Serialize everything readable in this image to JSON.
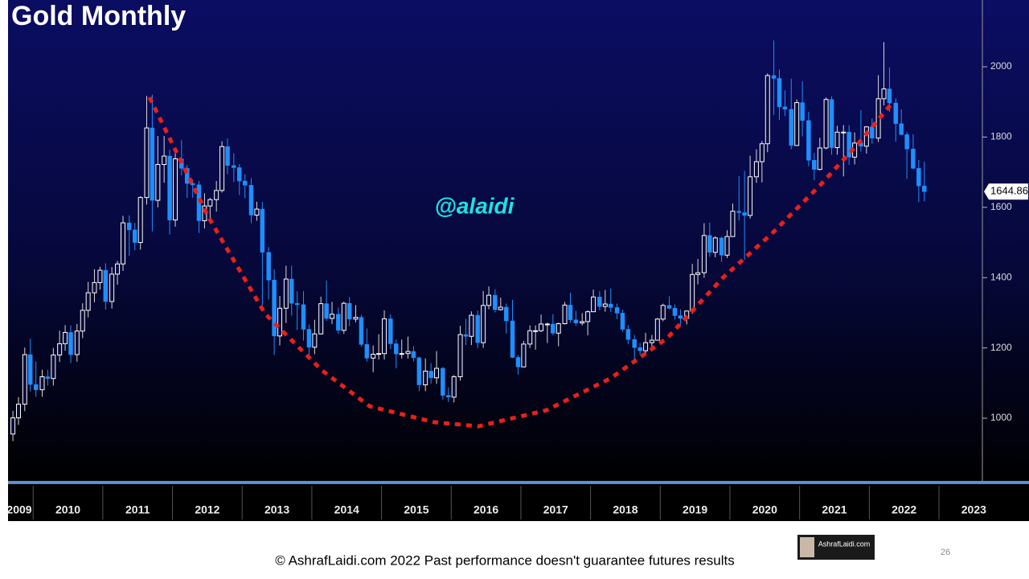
{
  "chart_data": {
    "type": "candlestick",
    "title": "Gold Monthly",
    "watermark": "@alaidi",
    "up_color": "#ffffff",
    "down_color": "#1e8fff",
    "x": [
      2009.71,
      2009.79,
      2009.88,
      2009.96,
      2010.04,
      2010.13,
      2010.21,
      2010.29,
      2010.38,
      2010.46,
      2010.54,
      2010.63,
      2010.71,
      2010.79,
      2010.88,
      2010.96,
      2011.04,
      2011.13,
      2011.21,
      2011.29,
      2011.38,
      2011.46,
      2011.54,
      2011.63,
      2011.71,
      2011.79,
      2011.88,
      2011.96,
      2012.04,
      2012.13,
      2012.21,
      2012.29,
      2012.38,
      2012.46,
      2012.54,
      2012.63,
      2012.71,
      2012.79,
      2012.88,
      2012.96,
      2013.04,
      2013.13,
      2013.21,
      2013.29,
      2013.38,
      2013.46,
      2013.54,
      2013.63,
      2013.71,
      2013.79,
      2013.88,
      2013.96,
      2014.04,
      2014.13,
      2014.21,
      2014.29,
      2014.38,
      2014.46,
      2014.54,
      2014.63,
      2014.71,
      2014.79,
      2014.88,
      2014.96,
      2015.04,
      2015.13,
      2015.21,
      2015.29,
      2015.38,
      2015.46,
      2015.54,
      2015.63,
      2015.71,
      2015.79,
      2015.88,
      2015.96,
      2016.04,
      2016.13,
      2016.21,
      2016.29,
      2016.38,
      2016.46,
      2016.54,
      2016.63,
      2016.71,
      2016.79,
      2016.88,
      2016.96,
      2017.04,
      2017.13,
      2017.21,
      2017.29,
      2017.38,
      2017.46,
      2017.54,
      2017.63,
      2017.71,
      2017.79,
      2017.88,
      2017.96,
      2018.04,
      2018.13,
      2018.21,
      2018.29,
      2018.38,
      2018.46,
      2018.54,
      2018.63,
      2018.71,
      2018.79,
      2018.88,
      2018.96,
      2019.04,
      2019.13,
      2019.21,
      2019.29,
      2019.38,
      2019.46,
      2019.54,
      2019.63,
      2019.71,
      2019.79,
      2019.88,
      2019.96,
      2020.04,
      2020.13,
      2020.21,
      2020.29,
      2020.38,
      2020.46,
      2020.54,
      2020.63,
      2020.71,
      2020.79,
      2020.88,
      2020.96,
      2021.04,
      2021.13,
      2021.21,
      2021.29,
      2021.38,
      2021.46,
      2021.54,
      2021.63,
      2021.71,
      2021.79,
      2021.88,
      2021.96,
      2022.04,
      2022.13,
      2022.21,
      2022.29,
      2022.38,
      2022.46,
      2022.54,
      2022.63,
      2022.71,
      2022.79
    ],
    "open": [
      955,
      1001,
      1040,
      1181,
      1096,
      1081,
      1118,
      1113,
      1180,
      1212,
      1244,
      1181,
      1248,
      1307,
      1357,
      1386,
      1421,
      1332,
      1410,
      1439,
      1556,
      1536,
      1500,
      1628,
      1826,
      1620,
      1722,
      1746,
      1564,
      1738,
      1711,
      1668,
      1664,
      1562,
      1604,
      1622,
      1648,
      1773,
      1719,
      1713,
      1675,
      1663,
      1578,
      1595,
      1472,
      1393,
      1234,
      1313,
      1396,
      1327,
      1323,
      1253,
      1202,
      1240,
      1326,
      1284,
      1296,
      1250,
      1327,
      1282,
      1287,
      1210,
      1171,
      1182,
      1184,
      1283,
      1212,
      1183,
      1184,
      1190,
      1172,
      1095,
      1134,
      1115,
      1142,
      1065,
      1060,
      1118,
      1238,
      1233,
      1293,
      1215,
      1321,
      1350,
      1309,
      1316,
      1277,
      1173,
      1146,
      1211,
      1249,
      1249,
      1268,
      1268,
      1242,
      1269,
      1322,
      1280,
      1271,
      1275,
      1303,
      1345,
      1318,
      1325,
      1315,
      1299,
      1253,
      1224,
      1201,
      1192,
      1215,
      1222,
      1282,
      1321,
      1313,
      1292,
      1284,
      1305,
      1409,
      1414,
      1520,
      1472,
      1513,
      1464,
      1517,
      1589,
      1585,
      1577,
      1687,
      1730,
      1781,
      1975,
      1967,
      1886,
      1879,
      1776,
      1898,
      1847,
      1734,
      1708,
      1769,
      1907,
      1770,
      1814,
      1814,
      1743,
      1783,
      1774,
      1829,
      1797,
      1909,
      1937,
      1897,
      1838,
      1807,
      1766,
      1711,
      1661
    ],
    "high": [
      1021,
      1060,
      1201,
      1226,
      1161,
      1138,
      1138,
      1200,
      1249,
      1265,
      1264,
      1268,
      1327,
      1388,
      1424,
      1431,
      1441,
      1430,
      1448,
      1576,
      1577,
      1556,
      1632,
      1917,
      1921,
      1803,
      1803,
      1764,
      1764,
      1791,
      1721,
      1679,
      1675,
      1640,
      1627,
      1675,
      1788,
      1796,
      1754,
      1723,
      1694,
      1683,
      1616,
      1615,
      1487,
      1424,
      1348,
      1434,
      1434,
      1361,
      1362,
      1267,
      1280,
      1346,
      1392,
      1331,
      1315,
      1332,
      1345,
      1322,
      1294,
      1255,
      1207,
      1239,
      1307,
      1296,
      1224,
      1224,
      1232,
      1205,
      1175,
      1170,
      1157,
      1191,
      1146,
      1088,
      1123,
      1263,
      1283,
      1304,
      1306,
      1362,
      1375,
      1367,
      1343,
      1326,
      1337,
      1180,
      1220,
      1264,
      1264,
      1295,
      1272,
      1296,
      1272,
      1331,
      1357,
      1306,
      1299,
      1307,
      1366,
      1362,
      1365,
      1369,
      1326,
      1309,
      1265,
      1237,
      1214,
      1243,
      1237,
      1285,
      1326,
      1347,
      1324,
      1310,
      1306,
      1439,
      1453,
      1555,
      1557,
      1518,
      1516,
      1535,
      1611,
      1689,
      1704,
      1747,
      1765,
      1789,
      1981,
      2075,
      1992,
      1933,
      1966,
      1907,
      1959,
      1872,
      1755,
      1798,
      1913,
      1916,
      1832,
      1834,
      1834,
      1813,
      1877,
      1831,
      1853,
      1976,
      2070,
      1998,
      1910,
      1879,
      1814,
      1808,
      1735,
      1730
    ],
    "low": [
      935,
      981,
      1020,
      1076,
      1061,
      1061,
      1093,
      1093,
      1160,
      1192,
      1157,
      1161,
      1228,
      1287,
      1330,
      1366,
      1309,
      1312,
      1380,
      1419,
      1462,
      1478,
      1480,
      1608,
      1532,
      1600,
      1670,
      1523,
      1545,
      1691,
      1627,
      1627,
      1527,
      1540,
      1565,
      1588,
      1642,
      1694,
      1672,
      1635,
      1626,
      1555,
      1562,
      1321,
      1338,
      1180,
      1207,
      1271,
      1292,
      1251,
      1221,
      1180,
      1182,
      1238,
      1277,
      1268,
      1240,
      1240,
      1262,
      1273,
      1204,
      1161,
      1131,
      1167,
      1167,
      1197,
      1142,
      1170,
      1170,
      1162,
      1077,
      1077,
      1098,
      1098,
      1052,
      1046,
      1045,
      1107,
      1208,
      1208,
      1199,
      1200,
      1310,
      1301,
      1306,
      1241,
      1171,
      1124,
      1146,
      1200,
      1195,
      1245,
      1214,
      1236,
      1205,
      1267,
      1272,
      1263,
      1264,
      1236,
      1302,
      1307,
      1303,
      1302,
      1282,
      1246,
      1211,
      1160,
      1180,
      1182,
      1196,
      1221,
      1276,
      1310,
      1281,
      1266,
      1267,
      1297,
      1381,
      1400,
      1459,
      1458,
      1445,
      1456,
      1516,
      1563,
      1451,
      1568,
      1670,
      1671,
      1757,
      1863,
      1849,
      1860,
      1765,
      1775,
      1802,
      1717,
      1677,
      1705,
      1765,
      1750,
      1750,
      1688,
      1721,
      1722,
      1759,
      1753,
      1781,
      1786,
      1890,
      1872,
      1787,
      1805,
      1681,
      1709,
      1615,
      1617
    ],
    "close": [
      1001,
      1040,
      1181,
      1096,
      1081,
      1118,
      1113,
      1180,
      1212,
      1244,
      1181,
      1248,
      1307,
      1357,
      1386,
      1421,
      1332,
      1410,
      1439,
      1556,
      1536,
      1500,
      1628,
      1826,
      1620,
      1722,
      1746,
      1564,
      1738,
      1711,
      1668,
      1664,
      1562,
      1604,
      1622,
      1648,
      1773,
      1719,
      1713,
      1675,
      1663,
      1578,
      1595,
      1472,
      1393,
      1234,
      1313,
      1396,
      1327,
      1323,
      1253,
      1202,
      1240,
      1326,
      1284,
      1296,
      1250,
      1327,
      1282,
      1287,
      1210,
      1171,
      1182,
      1184,
      1283,
      1212,
      1183,
      1184,
      1190,
      1172,
      1095,
      1134,
      1115,
      1142,
      1065,
      1060,
      1118,
      1238,
      1233,
      1293,
      1215,
      1321,
      1350,
      1309,
      1316,
      1277,
      1173,
      1146,
      1211,
      1249,
      1249,
      1268,
      1268,
      1242,
      1269,
      1322,
      1280,
      1271,
      1275,
      1303,
      1345,
      1318,
      1325,
      1315,
      1299,
      1253,
      1224,
      1201,
      1192,
      1215,
      1222,
      1282,
      1321,
      1313,
      1292,
      1284,
      1305,
      1409,
      1414,
      1520,
      1472,
      1513,
      1464,
      1517,
      1589,
      1585,
      1577,
      1687,
      1730,
      1781,
      1975,
      1967,
      1886,
      1879,
      1776,
      1898,
      1847,
      1734,
      1708,
      1769,
      1907,
      1770,
      1814,
      1814,
      1743,
      1783,
      1774,
      1829,
      1797,
      1909,
      1937,
      1897,
      1838,
      1807,
      1766,
      1711,
      1661,
      1644.86
    ],
    "last_price": 1644.86,
    "xlim": [
      2009.64,
      2023.6
    ],
    "ylim": [
      840,
      2190
    ],
    "yticks": [
      1000,
      1200,
      1400,
      1600,
      1800,
      2000
    ],
    "xticks": [
      {
        "value": 2009.5,
        "label": "2009"
      },
      {
        "value": 2010.5,
        "label": "2010"
      },
      {
        "value": 2011.5,
        "label": "2011"
      },
      {
        "value": 2012.5,
        "label": "2012"
      },
      {
        "value": 2013.5,
        "label": "2013"
      },
      {
        "value": 2014.5,
        "label": "2014"
      },
      {
        "value": 2015.5,
        "label": "2015"
      },
      {
        "value": 2016.5,
        "label": "2016"
      },
      {
        "value": 2017.5,
        "label": "2017"
      },
      {
        "value": 2018.5,
        "label": "2018"
      },
      {
        "value": 2019.5,
        "label": "2019"
      },
      {
        "value": 2020.5,
        "label": "2020"
      },
      {
        "value": 2021.5,
        "label": "2021"
      },
      {
        "value": 2022.5,
        "label": "2022"
      },
      {
        "value": 2023.5,
        "label": "2023"
      }
    ],
    "cup_curve": {
      "color": "#e8201c",
      "x": [
        2011.67,
        2012.52,
        2013.33,
        2014.14,
        2014.83,
        2015.75,
        2016.39,
        2017.37,
        2018.29,
        2019.1,
        2019.9,
        2020.6,
        2021.29,
        2021.87,
        2022.35
      ],
      "y": [
        1913,
        1571,
        1297,
        1137,
        1034,
        989,
        977,
        1023,
        1114,
        1228,
        1400,
        1525,
        1662,
        1788,
        1902
      ]
    }
  },
  "footer": {
    "text": "© AshrafLaidi.com 2022 Past performance doesn't guarantee futures results",
    "page_number": "26",
    "logo_text": "AshrafLaidi.com"
  }
}
